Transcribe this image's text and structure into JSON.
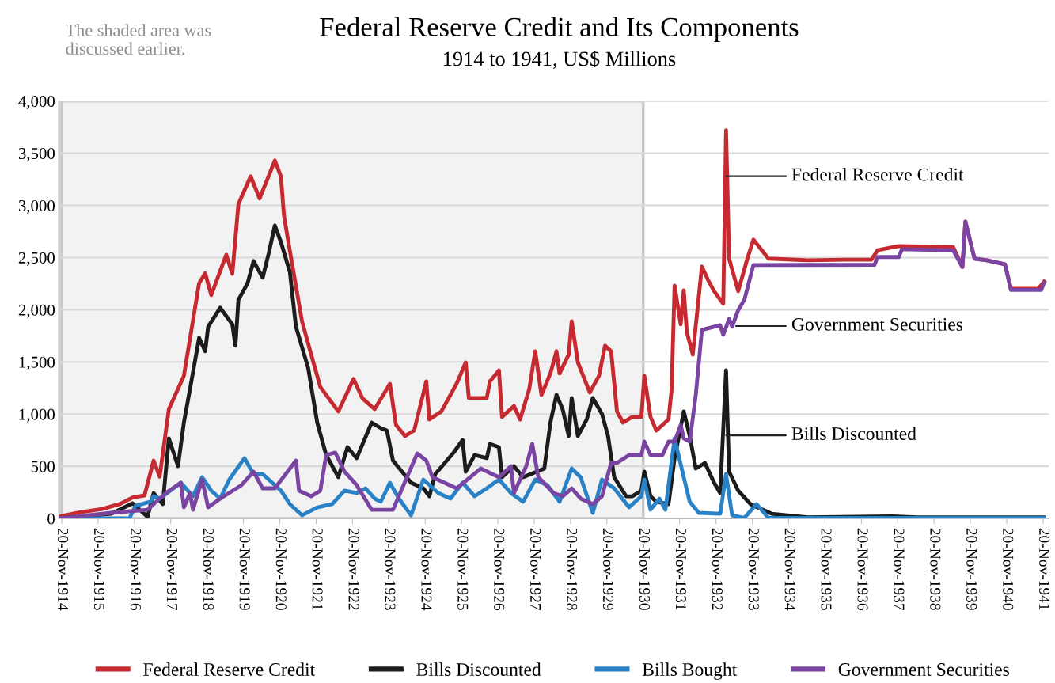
{
  "chart_data": {
    "type": "line",
    "title": "Federal Reserve Credit and Its Components",
    "subtitle": "1914 to 1941, US$ Millions",
    "xlim": [
      "1914-10-25",
      "1942-01-15"
    ],
    "xticks": [
      {
        "value": "1914-11-20",
        "label": "20-Nov-1914"
      },
      {
        "value": "1915-11-20",
        "label": "20-Nov-1915"
      },
      {
        "value": "1916-11-20",
        "label": "20-Nov-1916"
      },
      {
        "value": "1917-11-20",
        "label": "20-Nov-1917"
      },
      {
        "value": "1918-11-20",
        "label": "20-Nov-1918"
      },
      {
        "value": "1919-11-20",
        "label": "20-Nov-1919"
      },
      {
        "value": "1920-11-20",
        "label": "20-Nov-1920"
      },
      {
        "value": "1921-11-20",
        "label": "20-Nov-1921"
      },
      {
        "value": "1922-11-20",
        "label": "20-Nov-1922"
      },
      {
        "value": "1923-11-20",
        "label": "20-Nov-1923"
      },
      {
        "value": "1924-11-20",
        "label": "20-Nov-1924"
      },
      {
        "value": "1925-11-20",
        "label": "20-Nov-1925"
      },
      {
        "value": "1926-11-20",
        "label": "20-Nov-1926"
      },
      {
        "value": "1927-11-20",
        "label": "20-Nov-1927"
      },
      {
        "value": "1928-11-20",
        "label": "20-Nov-1928"
      },
      {
        "value": "1929-11-20",
        "label": "20-Nov-1929"
      },
      {
        "value": "1930-11-20",
        "label": "20-Nov-1930"
      },
      {
        "value": "1931-11-20",
        "label": "20-Nov-1931"
      },
      {
        "value": "1932-11-20",
        "label": "20-Nov-1932"
      },
      {
        "value": "1933-11-20",
        "label": "20-Nov-1933"
      },
      {
        "value": "1934-11-20",
        "label": "20-Nov-1934"
      },
      {
        "value": "1935-11-20",
        "label": "20-Nov-1935"
      },
      {
        "value": "1936-11-20",
        "label": "20-Nov-1936"
      },
      {
        "value": "1937-11-20",
        "label": "20-Nov-1937"
      },
      {
        "value": "1938-11-20",
        "label": "20-Nov-1938"
      },
      {
        "value": "1939-11-20",
        "label": "20-Nov-1939"
      },
      {
        "value": "1940-11-20",
        "label": "20-Nov-1940"
      },
      {
        "value": "1941-11-20",
        "label": "20-Nov-1941"
      }
    ],
    "ylim": [
      0,
      4000
    ],
    "yticks": [
      0,
      500,
      {
        "value": 1000,
        "label": "1,000"
      },
      {
        "value": 1500,
        "label": "1,500"
      },
      {
        "value": 2000,
        "label": "2,000"
      },
      {
        "value": 2500,
        "label": "2,500"
      },
      {
        "value": 3000,
        "label": "3,000"
      },
      {
        "value": 3500,
        "label": "3,500"
      },
      {
        "value": 4000,
        "label": "4,000"
      }
    ],
    "grid": "y",
    "legend": "bottom",
    "marker": "none",
    "line_style": "solid",
    "bands": [
      {
        "axis": "x",
        "from": "1914-11-20",
        "to": "1930-11-20",
        "color": "#f2f2f2"
      }
    ],
    "annotations": [
      "The shaded area was discussed earlier.",
      "Federal Reserve Credit",
      "Government Securities",
      "Bills Discounted"
    ],
    "series": [
      {
        "name": "Federal Reserve Credit",
        "color": "#c62a30",
        "x": [
          "1914-11",
          "1915-06",
          "1916-01",
          "1916-07",
          "1916-11",
          "1917-03",
          "1917-06",
          "1917-08",
          "1917-11",
          "1918-04",
          "1918-09",
          "1918-11",
          "1919-01",
          "1919-06",
          "1919-08",
          "1919-10",
          "1920-02",
          "1920-05",
          "1920-10",
          "1920-12",
          "1921-01",
          "1921-03",
          "1921-07",
          "1921-10",
          "1922-01",
          "1922-07",
          "1922-12",
          "1923-03",
          "1923-07",
          "1923-12",
          "1924-02",
          "1924-05",
          "1924-08",
          "1924-12",
          "1925-01",
          "1925-05",
          "1925-10",
          "1926-01",
          "1926-02",
          "1926-08",
          "1926-09",
          "1926-12",
          "1927-01",
          "1927-05",
          "1927-07",
          "1927-10",
          "1927-12",
          "1928-02",
          "1928-05",
          "1928-07",
          "1928-08",
          "1928-11",
          "1928-12",
          "1929-02",
          "1929-06",
          "1929-09",
          "1929-11",
          "1930-01",
          "1930-03",
          "1930-05",
          "1930-08",
          "1930-11",
          "1930-12",
          "1931-02",
          "1931-04",
          "1931-08",
          "1931-09",
          "1931-10",
          "1931-12",
          "1932-01",
          "1932-02",
          "1932-04",
          "1932-07",
          "1932-09",
          "1932-11",
          "1933-02",
          "1933-03",
          "1933-04",
          "1933-07",
          "1933-10",
          "1933-12",
          "1934-05",
          "1935-06",
          "1936-06",
          "1937-03",
          "1937-05",
          "1937-12",
          "1939-06",
          "1939-09",
          "1939-10",
          "1940-01",
          "1940-05",
          "1940-11",
          "1941-01",
          "1941-10",
          "1941-12"
        ],
        "values": [
          20,
          60,
          90,
          140,
          200,
          220,
          554,
          400,
          1047,
          1366,
          2254,
          2350,
          2140,
          2527,
          2345,
          3013,
          3279,
          3066,
          3430,
          3279,
          2900,
          2565,
          1890,
          1571,
          1260,
          1025,
          1336,
          1150,
          1047,
          1290,
          895,
          790,
          842,
          1313,
          948,
          1025,
          1290,
          1495,
          1154,
          1154,
          1313,
          1419,
          972,
          1078,
          948,
          1237,
          1602,
          1184,
          1389,
          1602,
          1389,
          1571,
          1890,
          1495,
          1207,
          1366,
          1655,
          1602,
          1025,
          918,
          972,
          972,
          1366,
          972,
          842,
          948,
          1237,
          2231,
          1860,
          2186,
          1784,
          1571,
          2414,
          2285,
          2178,
          2057,
          3719,
          2490,
          2178,
          2490,
          2672,
          2490,
          2474,
          2480,
          2480,
          2570,
          2611,
          2600,
          2410,
          2846,
          2490,
          2474,
          2436,
          2201,
          2200,
          2270
        ]
      },
      {
        "name": "Bills Discounted",
        "color": "#1c1c1c",
        "x": [
          "1914-11",
          "1916-04",
          "1916-11",
          "1917-04",
          "1917-06",
          "1917-09",
          "1917-11",
          "1918-02",
          "1918-04",
          "1918-06",
          "1918-09",
          "1918-11",
          "1918-12",
          "1919-04",
          "1919-08",
          "1919-09",
          "1919-10",
          "1920-01",
          "1920-03",
          "1920-06",
          "1920-08",
          "1920-10",
          "1920-12",
          "1921-03",
          "1921-05",
          "1921-09",
          "1921-12",
          "1922-03",
          "1922-07",
          "1922-10",
          "1923-01",
          "1923-06",
          "1923-09",
          "1923-11",
          "1924-01",
          "1924-07",
          "1924-11",
          "1925-01",
          "1925-03",
          "1925-09",
          "1925-12",
          "1926-01",
          "1926-04",
          "1926-08",
          "1926-09",
          "1926-12",
          "1927-01",
          "1927-05",
          "1927-08",
          "1928-03",
          "1928-05",
          "1928-07",
          "1928-09",
          "1928-11",
          "1928-12",
          "1929-02",
          "1929-05",
          "1929-07",
          "1929-10",
          "1929-12",
          "1930-02",
          "1930-06",
          "1930-08",
          "1930-11",
          "1930-12",
          "1931-02",
          "1931-04",
          "1931-08",
          "1931-10",
          "1932-01",
          "1932-03",
          "1932-05",
          "1932-08",
          "1932-11",
          "1933-01",
          "1933-03",
          "1933-04",
          "1933-07",
          "1933-11",
          "1934-06",
          "1935-06",
          "1937-10",
          "1938-06",
          "1941-12"
        ],
        "values": [
          0,
          45,
          144,
          15,
          243,
          137,
          767,
          501,
          918,
          1237,
          1730,
          1602,
          1837,
          2019,
          1860,
          1655,
          2095,
          2254,
          2467,
          2307,
          2543,
          2808,
          2649,
          2361,
          1837,
          1442,
          918,
          607,
          395,
          683,
          577,
          918,
          865,
          842,
          554,
          342,
          288,
          212,
          425,
          630,
          751,
          448,
          607,
          577,
          713,
          683,
          395,
          501,
          395,
          478,
          918,
          1184,
          1047,
          790,
          1154,
          790,
          948,
          1154,
          1002,
          790,
          395,
          212,
          212,
          266,
          448,
          212,
          160,
          137,
          577,
          1025,
          790,
          478,
          531,
          342,
          243,
          1419,
          448,
          266,
          137,
          45,
          10,
          20,
          10,
          10
        ]
      },
      {
        "name": "Bills Bought",
        "color": "#2a82c6",
        "x": [
          "1914-11",
          "1916-10",
          "1916-12",
          "1917-05",
          "1917-06",
          "1917-08",
          "1918-03",
          "1918-07",
          "1918-10",
          "1919-01",
          "1919-04",
          "1919-07",
          "1919-12",
          "1920-03",
          "1920-06",
          "1920-12",
          "1921-03",
          "1921-07",
          "1921-12",
          "1922-05",
          "1922-09",
          "1923-01",
          "1923-04",
          "1923-07",
          "1923-09",
          "1923-12",
          "1924-03",
          "1924-07",
          "1924-11",
          "1925-04",
          "1925-08",
          "1925-12",
          "1926-04",
          "1926-08",
          "1926-12",
          "1927-04",
          "1927-08",
          "1927-12",
          "1928-04",
          "1928-08",
          "1928-12",
          "1929-03",
          "1929-07",
          "1929-10",
          "1930-02",
          "1930-07",
          "1930-11",
          "1930-12",
          "1931-02",
          "1931-05",
          "1931-07",
          "1931-10",
          "1932-01",
          "1932-03",
          "1932-06",
          "1933-01",
          "1933-03",
          "1933-05",
          "1933-09",
          "1934-01",
          "1934-05",
          "1941-12"
        ],
        "values": [
          0,
          0,
          121,
          160,
          212,
          190,
          342,
          212,
          395,
          266,
          190,
          372,
          577,
          425,
          425,
          266,
          137,
          30,
          106,
          137,
          266,
          243,
          288,
          190,
          160,
          342,
          190,
          30,
          372,
          243,
          190,
          342,
          212,
          288,
          372,
          243,
          160,
          372,
          319,
          160,
          478,
          395,
          53,
          372,
          288,
          106,
          212,
          372,
          83,
          190,
          83,
          767,
          395,
          160,
          53,
          45,
          425,
          30,
          5,
          137,
          5,
          5
        ]
      },
      {
        "name": "Government Securities",
        "color": "#7a45a2",
        "x": [
          "1914-11",
          "1916-04",
          "1917-04",
          "1917-10",
          "1918-03",
          "1918-04",
          "1918-06",
          "1918-07",
          "1918-10",
          "1918-12",
          "1919-04",
          "1919-11",
          "1920-03",
          "1920-06",
          "1920-10",
          "1921-05",
          "1921-06",
          "1921-10",
          "1922-01",
          "1922-03",
          "1922-06",
          "1922-09",
          "1923-01",
          "1923-06",
          "1924-01",
          "1924-09",
          "1924-12",
          "1925-02",
          "1925-10",
          "1926-06",
          "1926-12",
          "1927-04",
          "1927-05",
          "1927-09",
          "1927-11",
          "1928-01",
          "1928-06",
          "1928-09",
          "1928-12",
          "1929-03",
          "1929-07",
          "1929-10",
          "1930-01",
          "1930-03",
          "1930-07",
          "1930-11",
          "1930-12",
          "1931-02",
          "1931-06",
          "1931-08",
          "1931-10",
          "1931-12",
          "1932-01",
          "1932-03",
          "1932-05",
          "1932-07",
          "1933-01",
          "1933-02",
          "1933-04",
          "1933-05",
          "1933-07",
          "1933-09",
          "1933-12",
          "1937-04",
          "1937-05",
          "1937-12",
          "1938-01",
          "1939-06",
          "1939-09",
          "1939-10",
          "1940-01",
          "1940-05",
          "1940-11",
          "1941-01",
          "1941-11",
          "1941-12"
        ],
        "values": [
          0,
          53,
          83,
          243,
          342,
          106,
          243,
          83,
          372,
          106,
          190,
          319,
          448,
          288,
          288,
          554,
          266,
          212,
          266,
          607,
          630,
          448,
          319,
          83,
          83,
          622,
          554,
          395,
          288,
          478,
          395,
          501,
          243,
          501,
          713,
          395,
          243,
          212,
          288,
          190,
          137,
          212,
          531,
          531,
          607,
          607,
          736,
          607,
          607,
          736,
          736,
          895,
          767,
          736,
          1184,
          1806,
          1852,
          1761,
          1913,
          1837,
          1996,
          2095,
          2429,
          2430,
          2505,
          2505,
          2580,
          2570,
          2410,
          2846,
          2490,
          2474,
          2436,
          2190,
          2190,
          2260
        ]
      }
    ]
  }
}
